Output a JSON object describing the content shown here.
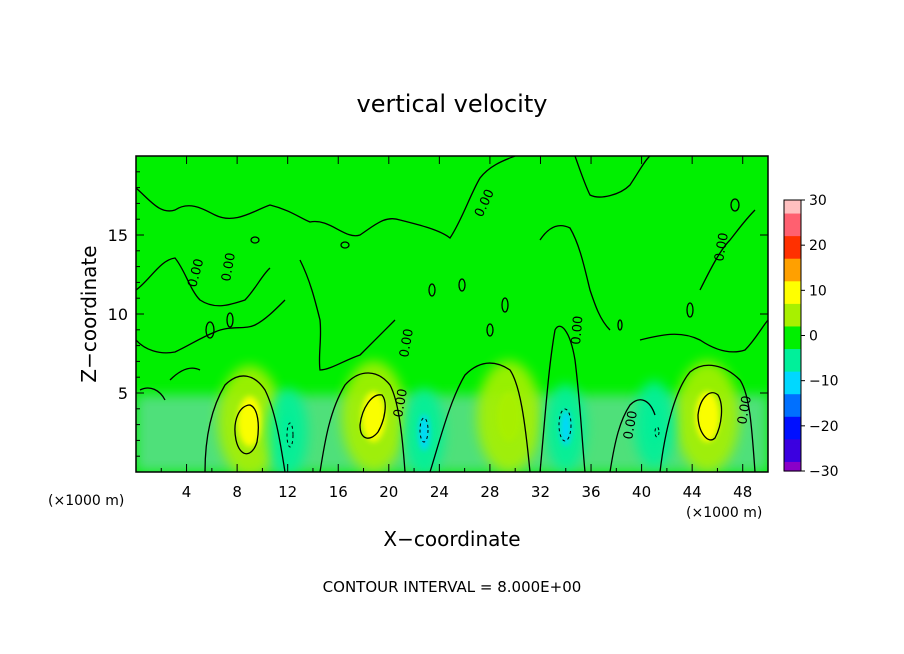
{
  "chart_data": {
    "type": "heatmap",
    "title": "vertical velocity",
    "xlabel": "X−coordinate",
    "ylabel": "Z−coordinate",
    "x_units_left": "(×1000 m)",
    "x_units_right": "(×1000 m)",
    "xlim": [
      0,
      50
    ],
    "ylim": [
      0,
      20
    ],
    "x_ticks": [
      "4",
      "8",
      "12",
      "16",
      "20",
      "24",
      "28",
      "32",
      "36",
      "40",
      "44",
      "48"
    ],
    "y_ticks": [
      "5",
      "10",
      "15"
    ],
    "colorbar": {
      "range": [
        -30,
        30
      ],
      "ticks": [
        "30",
        "20",
        "10",
        "0",
        "−10",
        "−20",
        "−30"
      ]
    },
    "contour_label": "0.00",
    "footer": "CONTOUR INTERVAL = 8.000E+00",
    "features": [
      {
        "kind": "updraft",
        "x": 9,
        "z": 3.2,
        "value": 10
      },
      {
        "kind": "updraft",
        "x": 18.8,
        "z": 3.5,
        "value": 10
      },
      {
        "kind": "updraft",
        "x": 29.5,
        "z": 3.5,
        "value": 7
      },
      {
        "kind": "updraft",
        "x": 45.2,
        "z": 3.5,
        "value": 10
      },
      {
        "kind": "downdraft",
        "x": 12,
        "z": 2.5,
        "value": -7
      },
      {
        "kind": "downdraft",
        "x": 22.8,
        "z": 2.5,
        "value": -8
      },
      {
        "kind": "downdraft",
        "x": 34,
        "z": 2.8,
        "value": -9
      },
      {
        "kind": "downdraft",
        "x": 41,
        "z": 3,
        "value": -6
      }
    ]
  }
}
